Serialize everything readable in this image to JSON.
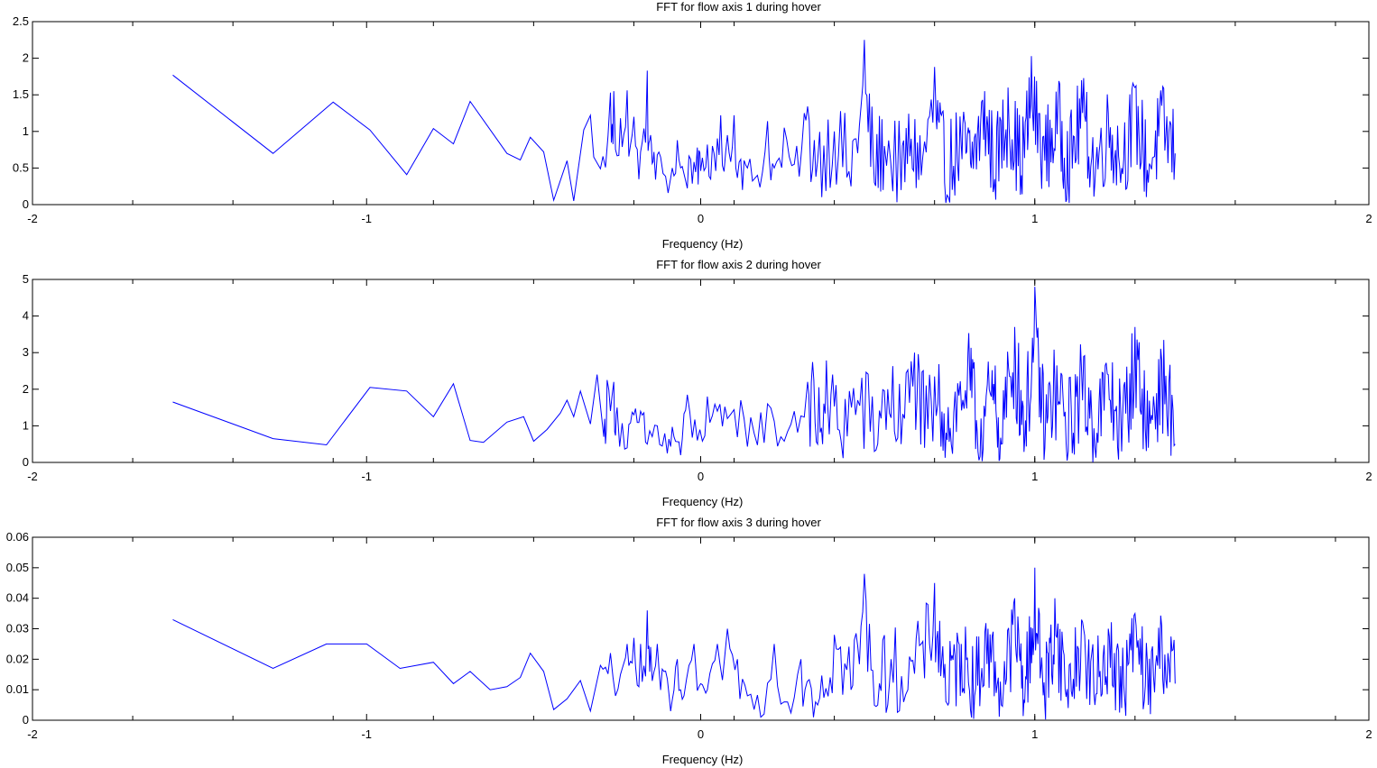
{
  "chart_data": [
    {
      "type": "line",
      "title": "FFT for flow axis 1 during hover",
      "xlabel": "Frequency (Hz)",
      "ylabel": "",
      "xlim": [
        -2,
        2
      ],
      "ylim": [
        0,
        2.5
      ],
      "xticks": [
        "-2",
        "-1",
        "0",
        "1",
        "2"
      ],
      "yticks": [
        "0",
        "0.5",
        "1",
        "1.5",
        "2",
        "2.5"
      ],
      "grid": false,
      "line_color": "#0000ff",
      "x_range": [
        -1.58,
        1.42
      ],
      "series": [
        {
          "x": [
            -1.58,
            -1.28,
            -1.1,
            -0.99,
            -0.88,
            -0.8,
            -0.74,
            -0.69,
            -0.58,
            -0.54,
            -0.51,
            -0.47,
            -0.44,
            -0.4,
            -0.38,
            -0.35,
            -0.33,
            -0.32,
            -0.3,
            -0.27,
            -0.26,
            -0.24,
            -0.22,
            -0.2,
            -0.18,
            -0.16,
            -0.15,
            -0.14,
            -0.12,
            -0.09,
            -0.07,
            -0.05,
            -0.03,
            -0.01,
            0.0,
            0.02,
            0.04,
            0.06,
            0.08,
            0.1,
            0.12,
            0.14,
            0.17,
            0.2,
            0.22,
            0.25,
            0.28,
            0.31,
            0.35,
            0.4,
            0.45,
            0.49,
            0.52,
            0.55,
            0.6,
            0.63,
            0.66,
            0.7,
            0.73,
            0.78,
            0.81,
            0.85,
            0.88,
            0.92,
            0.96,
            0.99,
            1.03,
            1.07,
            1.1,
            1.14,
            1.18,
            1.22,
            1.26,
            1.3,
            1.34,
            1.38,
            1.42
          ],
          "y": [
            1.77,
            0.7,
            1.4,
            1.02,
            0.41,
            1.04,
            0.83,
            1.41,
            0.7,
            0.61,
            0.92,
            0.72,
            0.06,
            0.6,
            0.05,
            1.02,
            1.22,
            0.65,
            0.49,
            1.53,
            1.55,
            1.18,
            1.56,
            1.2,
            0.72,
            1.83,
            0.95,
            0.72,
            0.65,
            0.36,
            0.88,
            0.42,
            0.62,
            0.78,
            0.46,
            0.82,
            0.7,
            1.22,
            0.95,
            1.22,
            0.62,
            0.5,
            0.4,
            1.14,
            0.5,
            1.05,
            0.55,
            1.25,
            0.6,
            1.0,
            0.25,
            2.25,
            0.3,
            0.8,
            0.2,
            0.9,
            0.4,
            1.88,
            0.3,
            0.8,
            0.5,
            1.55,
            0.35,
            1.6,
            0.4,
            2.03,
            0.6,
            1.5,
            0.3,
            1.7,
            0.3,
            1.25,
            0.5,
            1.6,
            0.3,
            1.35,
            0.7
          ]
        }
      ]
    },
    {
      "type": "line",
      "title": "FFT for flow axis 2 during hover",
      "xlabel": "Frequency (Hz)",
      "ylabel": "",
      "xlim": [
        -2,
        2
      ],
      "ylim": [
        0,
        5
      ],
      "xticks": [
        "-2",
        "-1",
        "0",
        "1",
        "2"
      ],
      "yticks": [
        "0",
        "1",
        "2",
        "3",
        "4",
        "5"
      ],
      "grid": false,
      "line_color": "#0000ff",
      "x_range": [
        -1.58,
        1.42
      ],
      "series": [
        {
          "x": [
            -1.58,
            -1.28,
            -1.12,
            -0.99,
            -0.88,
            -0.8,
            -0.74,
            -0.69,
            -0.65,
            -0.58,
            -0.53,
            -0.5,
            -0.46,
            -0.42,
            -0.4,
            -0.38,
            -0.36,
            -0.33,
            -0.31,
            -0.29,
            -0.28,
            -0.26,
            -0.25,
            -0.22,
            -0.2,
            -0.18,
            -0.16,
            -0.13,
            -0.1,
            -0.08,
            -0.06,
            -0.04,
            -0.01,
            0.02,
            0.05,
            0.08,
            0.12,
            0.16,
            0.2,
            0.24,
            0.28,
            0.32,
            0.35,
            0.38,
            0.42,
            0.47,
            0.52,
            0.56,
            0.6,
            0.64,
            0.67,
            0.71,
            0.75,
            0.8,
            0.83,
            0.87,
            0.9,
            0.94,
            0.97,
            1.0,
            1.03,
            1.06,
            1.1,
            1.14,
            1.18,
            1.22,
            1.26,
            1.3,
            1.34,
            1.38,
            1.42
          ],
          "y": [
            1.65,
            0.65,
            0.48,
            2.05,
            1.95,
            1.25,
            2.15,
            0.6,
            0.55,
            1.1,
            1.25,
            0.58,
            0.9,
            1.35,
            1.7,
            1.25,
            1.95,
            1.05,
            2.4,
            0.7,
            2.25,
            2.2,
            1.5,
            0.4,
            1.3,
            1.4,
            0.5,
            1.0,
            0.25,
            0.7,
            0.2,
            1.85,
            0.6,
            1.8,
            1.4,
            1.2,
            1.7,
            0.8,
            1.6,
            0.7,
            1.4,
            2.2,
            0.5,
            1.6,
            0.6,
            1.7,
            0.3,
            2.0,
            0.5,
            3.0,
            0.4,
            1.6,
            0.5,
            3.0,
            0.3,
            1.8,
            0.5,
            3.7,
            0.6,
            4.8,
            0.4,
            2.2,
            0.3,
            2.5,
            0.4,
            2.4,
            0.3,
            3.7,
            0.4,
            2.8,
            0.5
          ]
        }
      ]
    },
    {
      "type": "line",
      "title": "FFT for flow axis 3 during hover",
      "xlabel": "Frequency (Hz)",
      "ylabel": "",
      "xlim": [
        -2,
        2
      ],
      "ylim": [
        0,
        0.06
      ],
      "xticks": [
        "-2",
        "-1",
        "0",
        "1",
        "2"
      ],
      "yticks": [
        "0",
        "0.01",
        "0.02",
        "0.03",
        "0.04",
        "0.05",
        "0.06"
      ],
      "grid": false,
      "line_color": "#0000ff",
      "x_range": [
        -1.58,
        1.42
      ],
      "series": [
        {
          "x": [
            -1.58,
            -1.28,
            -1.12,
            -1.0,
            -0.9,
            -0.8,
            -0.74,
            -0.69,
            -0.63,
            -0.58,
            -0.54,
            -0.51,
            -0.47,
            -0.44,
            -0.4,
            -0.36,
            -0.33,
            -0.3,
            -0.27,
            -0.24,
            -0.22,
            -0.2,
            -0.18,
            -0.16,
            -0.15,
            -0.13,
            -0.11,
            -0.09,
            -0.07,
            -0.05,
            -0.02,
            0.0,
            0.02,
            0.05,
            0.08,
            0.11,
            0.14,
            0.18,
            0.22,
            0.26,
            0.3,
            0.35,
            0.4,
            0.45,
            0.49,
            0.53,
            0.57,
            0.62,
            0.66,
            0.7,
            0.74,
            0.78,
            0.82,
            0.86,
            0.9,
            0.94,
            0.97,
            1.0,
            1.03,
            1.06,
            1.1,
            1.14,
            1.18,
            1.22,
            1.26,
            1.3,
            1.34,
            1.38,
            1.42
          ],
          "y": [
            0.033,
            0.017,
            0.025,
            0.025,
            0.017,
            0.019,
            0.012,
            0.016,
            0.01,
            0.011,
            0.014,
            0.022,
            0.016,
            0.0035,
            0.007,
            0.013,
            0.003,
            0.018,
            0.022,
            0.015,
            0.025,
            0.027,
            0.025,
            0.036,
            0.024,
            0.025,
            0.016,
            0.003,
            0.02,
            0.008,
            0.025,
            0.012,
            0.01,
            0.025,
            0.03,
            0.02,
            0.008,
            0.001,
            0.025,
            0.006,
            0.02,
            0.005,
            0.028,
            0.01,
            0.048,
            0.005,
            0.02,
            0.01,
            0.025,
            0.045,
            0.005,
            0.025,
            0.008,
            0.03,
            0.005,
            0.04,
            0.006,
            0.05,
            0.005,
            0.04,
            0.004,
            0.033,
            0.005,
            0.03,
            0.004,
            0.035,
            0.005,
            0.031,
            0.012
          ]
        }
      ]
    }
  ]
}
